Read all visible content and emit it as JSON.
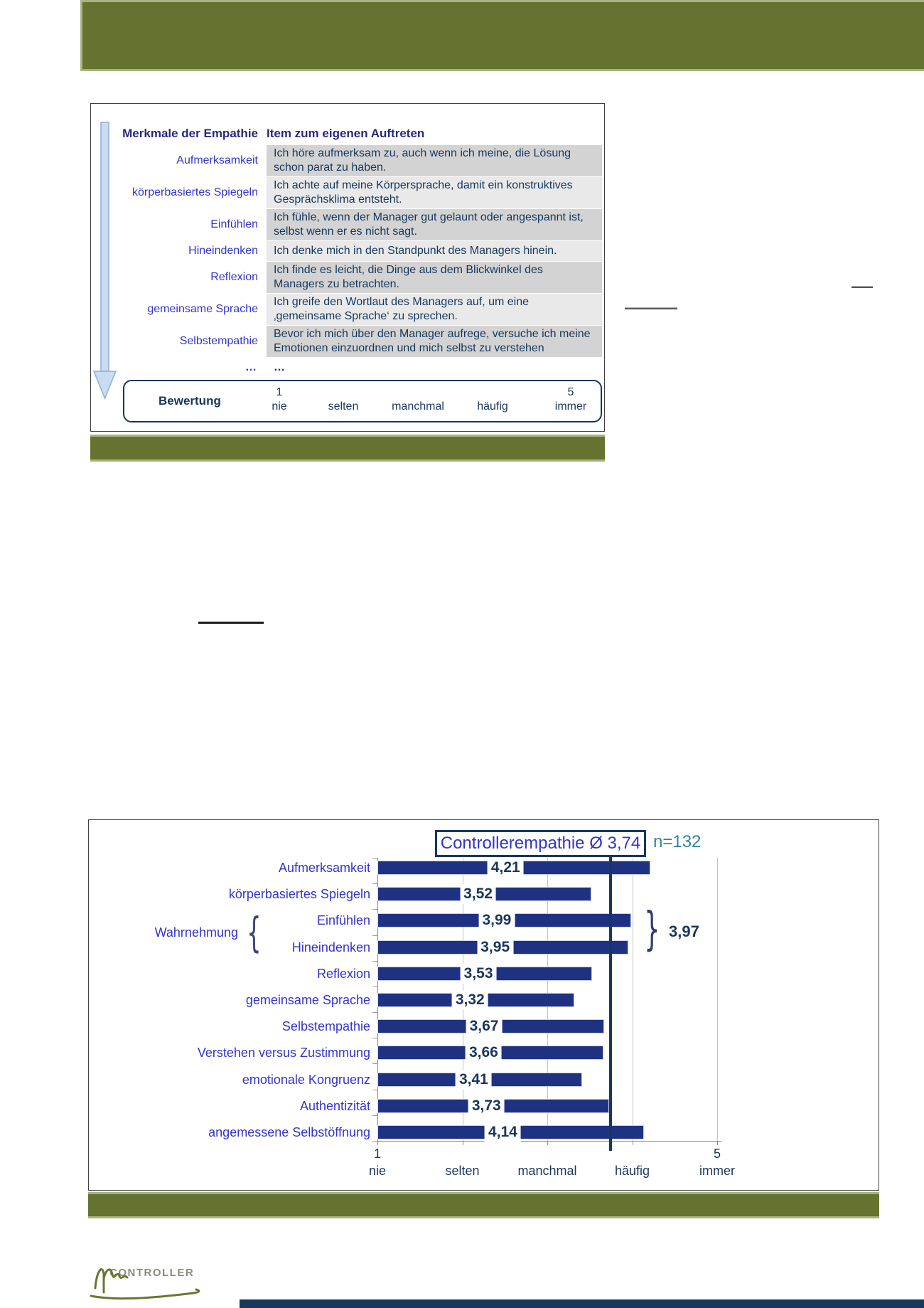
{
  "colors": {
    "olive": "#667330",
    "olive_light": "#A9B284",
    "navy": "#17375D",
    "bar_blue": "#1F3282",
    "label_blue": "#3333CC",
    "header_blue": "#28287E",
    "teal": "#31849B",
    "cell_dark": "#D3D3D3",
    "cell_light": "#E9E9E9"
  },
  "logo": {
    "caps": "CONTROLLER"
  },
  "chart_data": [
    {
      "type": "table",
      "columns": [
        "Merkmale der Empathie",
        "Item zum eigenen Auftreten"
      ],
      "rows": [
        [
          "Aufmerksamkeit",
          "Ich höre aufmerksam zu, auch wenn ich meine, die Lösung schon parat zu haben."
        ],
        [
          "körperbasiertes Spiegeln",
          "Ich achte auf meine Körpersprache, damit ein konstruktives Gesprächsklima entsteht."
        ],
        [
          "Einfühlen",
          "Ich fühle, wenn der Manager gut gelaunt oder angespannt ist, selbst wenn er es nicht sagt."
        ],
        [
          "Hineindenken",
          "Ich denke mich in den Standpunkt des Managers hinein."
        ],
        [
          "Reflexion",
          "Ich finde es leicht, die Dinge aus dem Blickwinkel des Managers zu betrachten."
        ],
        [
          "gemeinsame Sprache",
          "Ich greife den Wortlaut des Managers auf, um eine ‚gemeinsame Sprache‘ zu sprechen."
        ],
        [
          "Selbstempathie",
          "Bevor ich mich über den Manager aufrege, versuche ich meine Emotionen einzuordnen und mich selbst zu verstehen"
        ]
      ],
      "ellipsis_row": [
        "…",
        "…"
      ],
      "rating_scale": {
        "label": "Bewertung",
        "ticks": [
          {
            "num": "1",
            "word": "nie"
          },
          {
            "num": "",
            "word": "selten"
          },
          {
            "num": "",
            "word": "manchmal"
          },
          {
            "num": "",
            "word": "häufig"
          },
          {
            "num": "5",
            "word": "immer"
          }
        ]
      }
    },
    {
      "type": "bar",
      "orientation": "horizontal",
      "title": "Controllerempathie Ø 3,74",
      "sample_label": "n=132",
      "categories": [
        "Aufmerksamkeit",
        "körperbasiertes Spiegeln",
        "Einfühlen",
        "Hineindenken",
        "Reflexion",
        "gemeinsame Sprache",
        "Selbstempathie",
        "Verstehen versus Zustimmung",
        "emotionale Kongruenz",
        "Authentizität",
        "angemessene Selbstöffnung"
      ],
      "values": [
        4.21,
        3.52,
        3.99,
        3.95,
        3.53,
        3.32,
        3.67,
        3.66,
        3.41,
        3.73,
        4.14
      ],
      "value_labels": [
        "4,21",
        "3,52",
        "3,99",
        "3,95",
        "3,53",
        "3,32",
        "3,67",
        "3,66",
        "3,41",
        "3,73",
        "4,14"
      ],
      "mean": 3.74,
      "group_annotation": {
        "label": "Wahrnehmung",
        "members": [
          "Einfühlen",
          "Hineindenken"
        ],
        "value_label": "3,97",
        "brace_left": "{",
        "brace_right": "}"
      },
      "xlim": [
        1,
        5
      ],
      "grid": "vertical lines at integer values 2-5",
      "legend": "none",
      "x_tick_labels": [
        {
          "num": "1",
          "word": "nie"
        },
        {
          "num": "",
          "word": "selten"
        },
        {
          "num": "",
          "word": "manchmal"
        },
        {
          "num": "",
          "word": "häufig"
        },
        {
          "num": "5",
          "word": "immer"
        }
      ]
    }
  ]
}
